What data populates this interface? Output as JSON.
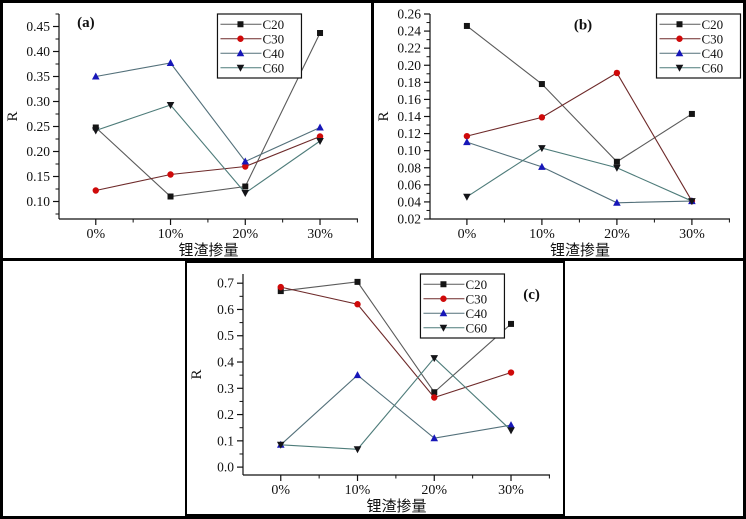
{
  "figure": {
    "background": "#ffffff",
    "border_color": "#000000",
    "text_color": "#111111"
  },
  "chart_data": [
    {
      "id": "a",
      "type": "line",
      "panel_label": "(a)",
      "title": "",
      "xlabel": "锂渣掺量",
      "ylabel": "R",
      "categories": [
        "0%",
        "10%",
        "20%",
        "30%"
      ],
      "ylim": [
        0.065,
        0.475
      ],
      "yticks": [
        0.1,
        0.15,
        0.2,
        0.25,
        0.3,
        0.35,
        0.4,
        0.45
      ],
      "ytick_labels": [
        "0.10",
        "0.15",
        "0.20",
        "0.25",
        "0.30",
        "0.35",
        "0.40",
        "0.45"
      ],
      "grid": false,
      "legend": {
        "x": 0.53,
        "y": 0.0,
        "entries": [
          "C20",
          "C30",
          "C40",
          "C60"
        ]
      },
      "panel_label_pos": {
        "x": 0.09,
        "y": 0.04
      },
      "series": [
        {
          "name": "C20",
          "marker": "square",
          "marker_color": "#151515",
          "line_color": "#5a5a5a",
          "values": [
            0.248,
            0.11,
            0.13,
            0.437
          ]
        },
        {
          "name": "C30",
          "marker": "circle",
          "marker_color": "#cf0a0a",
          "line_color": "#6e2a2a",
          "values": [
            0.122,
            0.154,
            0.17,
            0.23
          ]
        },
        {
          "name": "C40",
          "marker": "triangle-up",
          "marker_color": "#1717b8",
          "line_color": "#53707a",
          "values": [
            0.35,
            0.377,
            0.18,
            0.248
          ]
        },
        {
          "name": "C60",
          "marker": "triangle-down",
          "marker_color": "#141418",
          "line_color": "#4e7c7a",
          "values": [
            0.242,
            0.293,
            0.117,
            0.221
          ]
        }
      ]
    },
    {
      "id": "b",
      "type": "line",
      "panel_label": "(b)",
      "title": "",
      "xlabel": "锂渣掺量",
      "ylabel": "R",
      "categories": [
        "0%",
        "10%",
        "20%",
        "30%"
      ],
      "ylim": [
        0.02,
        0.26
      ],
      "yticks": [
        0.02,
        0.04,
        0.06,
        0.08,
        0.1,
        0.12,
        0.14,
        0.16,
        0.18,
        0.2,
        0.22,
        0.24,
        0.26
      ],
      "ytick_labels": [
        "0.02",
        "0.04",
        "0.06",
        "0.08",
        "0.10",
        "0.12",
        "0.14",
        "0.16",
        "0.18",
        "0.20",
        "0.22",
        "0.24",
        "0.26"
      ],
      "grid": false,
      "legend": {
        "x": 0.755,
        "y": 0.0,
        "entries": [
          "C20",
          "C30",
          "C40",
          "C60"
        ]
      },
      "panel_label_pos": {
        "x": 0.51,
        "y": 0.05
      },
      "series": [
        {
          "name": "C20",
          "marker": "square",
          "marker_color": "#151515",
          "line_color": "#5a5a5a",
          "values": [
            0.246,
            0.178,
            0.087,
            0.143
          ]
        },
        {
          "name": "C30",
          "marker": "circle",
          "marker_color": "#cf0a0a",
          "line_color": "#6e2a2a",
          "values": [
            0.117,
            0.139,
            0.191,
            0.041
          ]
        },
        {
          "name": "C40",
          "marker": "triangle-up",
          "marker_color": "#1717b8",
          "line_color": "#53707a",
          "values": [
            0.11,
            0.081,
            0.039,
            0.041
          ]
        },
        {
          "name": "C60",
          "marker": "triangle-down",
          "marker_color": "#141418",
          "line_color": "#4e7c7a",
          "values": [
            0.046,
            0.103,
            0.08,
            0.041
          ]
        }
      ]
    },
    {
      "id": "c",
      "type": "line",
      "panel_label": "(c)",
      "title": "",
      "xlabel": "锂渣掺量",
      "ylabel": "R",
      "categories": [
        "0%",
        "10%",
        "20%",
        "30%"
      ],
      "ylim": [
        -0.03,
        0.735
      ],
      "yticks": [
        0.0,
        0.1,
        0.2,
        0.3,
        0.4,
        0.5,
        0.6,
        0.7
      ],
      "ytick_labels": [
        "0.0",
        "0.1",
        "0.2",
        "0.3",
        "0.4",
        "0.5",
        "0.6",
        "0.7"
      ],
      "grid": false,
      "legend": {
        "x": 0.578,
        "y": 0.0,
        "entries": [
          "C20",
          "C30",
          "C40",
          "C60"
        ]
      },
      "panel_label_pos": {
        "x": 0.94,
        "y": 0.1
      },
      "series": [
        {
          "name": "C20",
          "marker": "square",
          "marker_color": "#151515",
          "line_color": "#5a5a5a",
          "values": [
            0.67,
            0.705,
            0.285,
            0.545
          ]
        },
        {
          "name": "C30",
          "marker": "circle",
          "marker_color": "#cf0a0a",
          "line_color": "#6e2a2a",
          "values": [
            0.685,
            0.62,
            0.265,
            0.36
          ]
        },
        {
          "name": "C40",
          "marker": "triangle-up",
          "marker_color": "#1717b8",
          "line_color": "#53707a",
          "values": [
            0.085,
            0.35,
            0.11,
            0.16
          ]
        },
        {
          "name": "C60",
          "marker": "triangle-down",
          "marker_color": "#141418",
          "line_color": "#4e7c7a",
          "values": [
            0.085,
            0.068,
            0.415,
            0.14
          ]
        }
      ]
    }
  ]
}
